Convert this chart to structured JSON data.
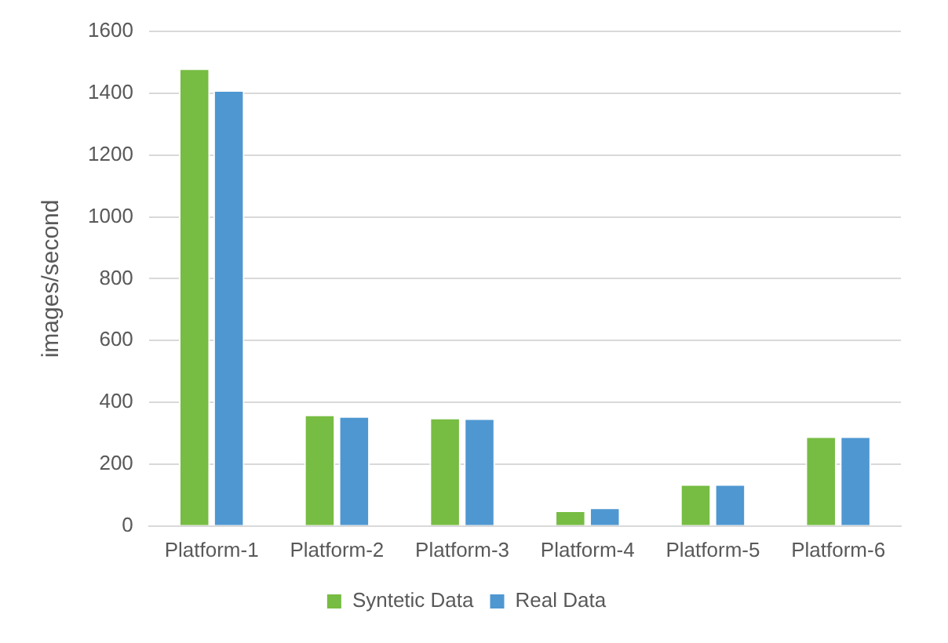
{
  "chart_data": {
    "type": "bar",
    "ylabel": "images/second",
    "categories": [
      "Platform-1",
      "Platform-2",
      "Platform-3",
      "Platform-4",
      "Platform-5",
      "Platform-6"
    ],
    "series": [
      {
        "name": "Syntetic Data",
        "color": "#77bc43",
        "values": [
          1480,
          360,
          350,
          50,
          135,
          290
        ]
      },
      {
        "name": "Real Data",
        "color": "#4f97d1",
        "values": [
          1410,
          355,
          348,
          60,
          135,
          290
        ]
      }
    ],
    "ylim": [
      0,
      1600
    ],
    "yticks": [
      0,
      200,
      400,
      600,
      800,
      1000,
      1200,
      1400,
      1600
    ],
    "grid": "y",
    "legend": "bottom"
  }
}
